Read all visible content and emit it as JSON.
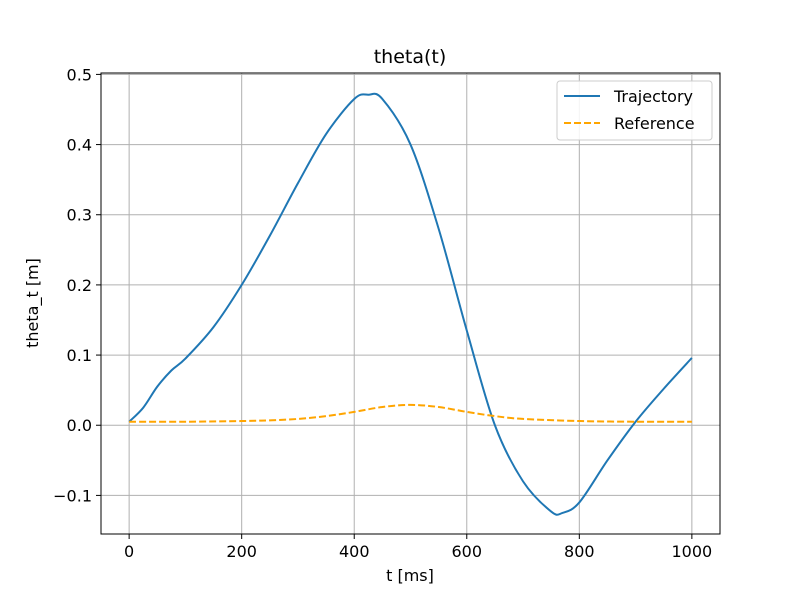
{
  "chart_data": {
    "type": "line",
    "title": "theta(t)",
    "xlabel": "t [ms]",
    "ylabel": "theta_t [m]",
    "xlim": [
      -50,
      1050
    ],
    "ylim": [
      -0.155,
      0.502
    ],
    "xticks": [
      0,
      200,
      400,
      600,
      800,
      1000
    ],
    "xtick_labels": [
      "0",
      "200",
      "400",
      "600",
      "800",
      "1000"
    ],
    "yticks": [
      -0.1,
      0.0,
      0.1,
      0.2,
      0.3,
      0.4,
      0.5
    ],
    "ytick_labels": [
      "−0.1",
      "0.0",
      "0.1",
      "0.2",
      "0.3",
      "0.4",
      "0.5"
    ],
    "grid": true,
    "legend_position": "top-right",
    "series": [
      {
        "name": "Trajectory",
        "color": "#1f77b4",
        "style": "solid",
        "x": [
          0,
          25,
          50,
          75,
          100,
          150,
          200,
          250,
          300,
          350,
          400,
          425,
          450,
          500,
          550,
          600,
          650,
          700,
          750,
          770,
          800,
          850,
          900,
          950,
          1000
        ],
        "y": [
          0.005,
          0.025,
          0.055,
          0.078,
          0.095,
          0.14,
          0.2,
          0.27,
          0.345,
          0.415,
          0.465,
          0.471,
          0.465,
          0.4,
          0.28,
          0.135,
          0.0,
          -0.08,
          -0.123,
          -0.125,
          -0.11,
          -0.05,
          0.005,
          0.052,
          0.096
        ]
      },
      {
        "name": "Reference",
        "color": "#ffa500",
        "style": "dashed",
        "x": [
          0,
          100,
          200,
          250,
          300,
          350,
          400,
          450,
          500,
          550,
          600,
          650,
          700,
          800,
          900,
          1000
        ],
        "y": [
          0.005,
          0.005,
          0.006,
          0.007,
          0.009,
          0.013,
          0.019,
          0.026,
          0.029,
          0.026,
          0.019,
          0.013,
          0.009,
          0.006,
          0.005,
          0.005
        ]
      }
    ]
  }
}
